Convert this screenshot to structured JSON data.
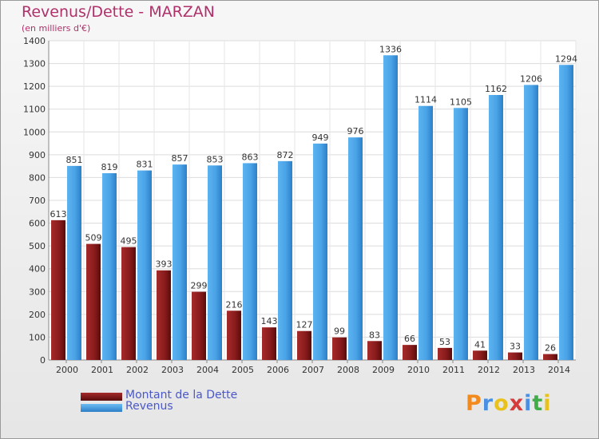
{
  "chart_data": {
    "type": "bar",
    "title": "Revenus/Dette - MARZAN",
    "subtitle": "(en milliers d'€)",
    "categories": [
      "2000",
      "2001",
      "2002",
      "2003",
      "2004",
      "2005",
      "2006",
      "2007",
      "2008",
      "2009",
      "2010",
      "2011",
      "2012",
      "2013",
      "2014"
    ],
    "series": [
      {
        "name": "Montant de la Dette",
        "color": "#8b1a1a",
        "values": [
          613,
          509,
          495,
          393,
          299,
          216,
          143,
          127,
          99,
          83,
          66,
          53,
          41,
          33,
          26
        ]
      },
      {
        "name": "Revenus",
        "color": "#4aa3e6",
        "values": [
          851,
          819,
          831,
          857,
          853,
          863,
          872,
          949,
          976,
          1336,
          1114,
          1105,
          1162,
          1206,
          1294
        ]
      }
    ],
    "ylim": [
      0,
      1400
    ],
    "yticks": [
      0,
      100,
      200,
      300,
      400,
      500,
      600,
      700,
      800,
      900,
      1000,
      1100,
      1200,
      1300,
      1400
    ],
    "grid": true,
    "legend": "bottom-left"
  },
  "logo": {
    "letters": [
      "P",
      "r",
      "o",
      "x",
      "i",
      "t",
      "i"
    ],
    "colors": [
      "#f28a1e",
      "#4a90e2",
      "#e8c21a",
      "#d63a3a",
      "#4a90e2",
      "#3fae49",
      "#e8c21a"
    ]
  }
}
